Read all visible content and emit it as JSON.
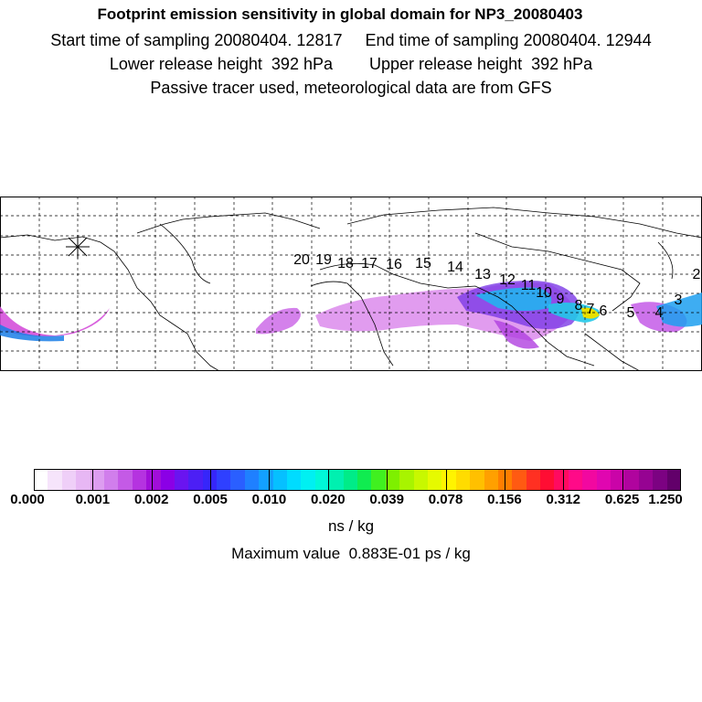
{
  "header": {
    "title": "Footprint emission sensitivity in global domain for NP3_20080403",
    "sampling": "Start time of sampling 20080404. 12817     End time of sampling 20080404. 12944",
    "release": "Lower release height  392 hPa        Upper release height  392 hPa",
    "tracer": "Passive tracer used, meteorological data are from GFS"
  },
  "map": {
    "trajectory_labels": [
      "20",
      "19",
      "18",
      "17",
      "16",
      "15",
      "14",
      "13",
      "12",
      "11",
      "10",
      "9",
      "8",
      "7",
      "6",
      "5",
      "4",
      "3",
      "2"
    ]
  },
  "colorbar": {
    "colors": [
      "#ffffff",
      "#f6e4fb",
      "#efcff8",
      "#e7b7f4",
      "#dd9df0",
      "#d17eec",
      "#c45ae6",
      "#b533e0",
      "#a10ed9",
      "#8b00e6",
      "#6a14f0",
      "#4c1ff5",
      "#3626fb",
      "#2f40ff",
      "#2a5fff",
      "#1f80ff",
      "#13a0ff",
      "#06c0ff",
      "#00dcff",
      "#00f0f2",
      "#00f8d8",
      "#00f0b0",
      "#00ec88",
      "#10ec50",
      "#40f020",
      "#7ef000",
      "#a8f400",
      "#c8f800",
      "#e6fa00",
      "#fff400",
      "#ffdc00",
      "#ffc000",
      "#ffa000",
      "#ff7e00",
      "#ff5a12",
      "#ff3022",
      "#ff0d33",
      "#ff0a60",
      "#ff0a88",
      "#f208a0",
      "#e006b0",
      "#ca04a8",
      "#b0049e",
      "#960392",
      "#7c0282",
      "#62006a"
    ],
    "tick_labels": [
      "0.000",
      "0.001",
      "0.002",
      "0.005",
      "0.010",
      "0.020",
      "0.039",
      "0.078",
      "0.156",
      "0.312",
      "0.625",
      "1.250"
    ],
    "unit": "ns / kg",
    "maximum": "Maximum value  0.883E-01 ps / kg"
  }
}
